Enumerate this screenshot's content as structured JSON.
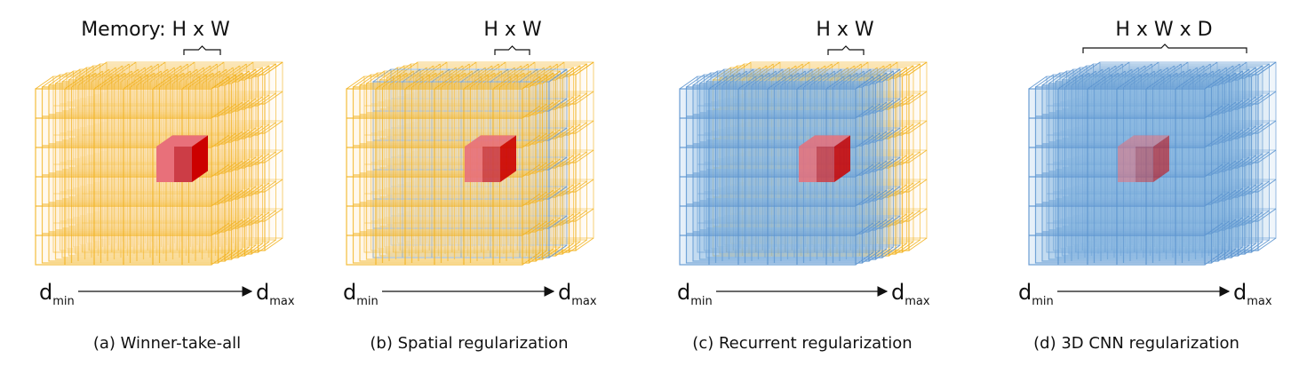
{
  "colors": {
    "yellow_stroke": "#f2b21c",
    "yellow_fill": "#fbe7b3",
    "blue_stroke": "#5b94cf",
    "blue_fill": "#8db9e3",
    "red_front": "#e8707a",
    "red_dark": "#b5141c",
    "red_side": "#cc0000"
  },
  "panels": [
    {
      "id": "a",
      "memory_label": "Memory: H x W",
      "caption": "(a) Winner-take-all",
      "axis": {
        "min_main": "d",
        "min_sub": "min",
        "max_main": "d",
        "max_sub": "max"
      },
      "style": "winner-take-all"
    },
    {
      "id": "b",
      "memory_label": "H x W",
      "caption": "(b) Spatial regularization",
      "axis": {
        "min_main": "d",
        "min_sub": "min",
        "max_main": "d",
        "max_sub": "max"
      },
      "style": "spatial"
    },
    {
      "id": "c",
      "memory_label": "H x W",
      "caption": "(c) Recurrent regularization",
      "axis": {
        "min_main": "d",
        "min_sub": "min",
        "max_main": "d",
        "max_sub": "max"
      },
      "style": "recurrent"
    },
    {
      "id": "d",
      "memory_label": "H x W x D",
      "caption": "(d) 3D CNN regularization",
      "axis": {
        "min_main": "d",
        "min_sub": "min",
        "max_main": "d",
        "max_sub": "max"
      },
      "style": "3d-cnn"
    }
  ]
}
